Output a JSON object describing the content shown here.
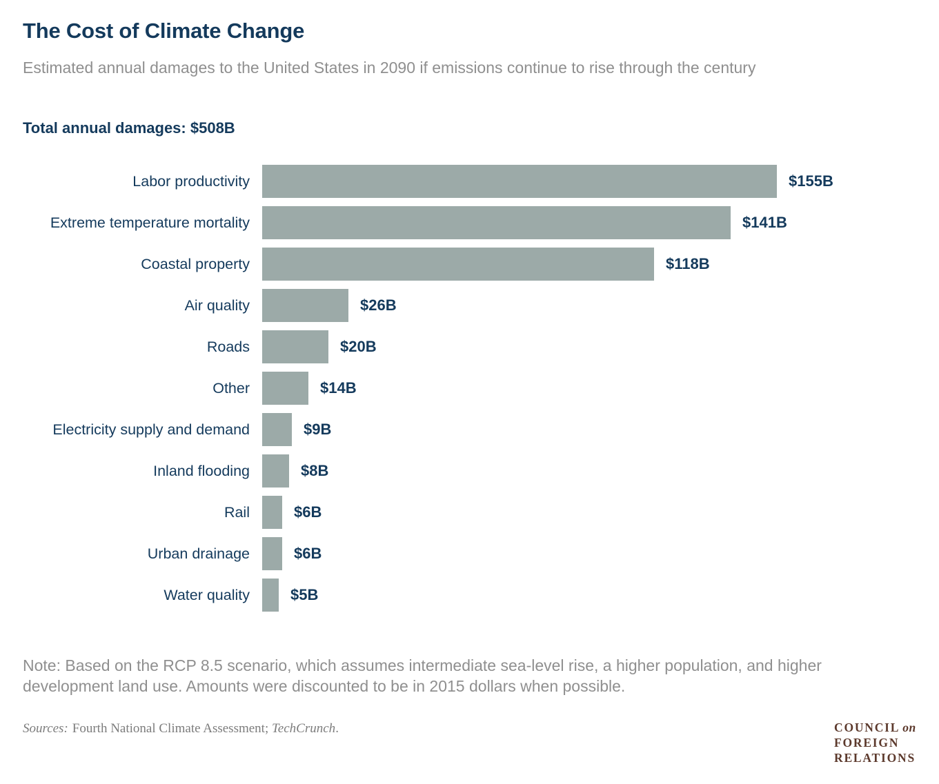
{
  "header": {
    "title": "The Cost of Climate Change",
    "subtitle": "Estimated annual damages to the United States in 2090 if emissions continue to rise through the century",
    "total_label": "Total annual damages: $508B"
  },
  "chart_data": {
    "type": "bar",
    "orientation": "horizontal",
    "title": "The Cost of Climate Change",
    "unit": "billions of US dollars (2015 dollars)",
    "total_annual_damages_billions": 508,
    "categories": [
      "Labor productivity",
      "Extreme temperature mortality",
      "Coastal property",
      "Air quality",
      "Roads",
      "Other",
      "Electricity supply and demand",
      "Inland flooding",
      "Rail",
      "Urban drainage",
      "Water quality"
    ],
    "values": [
      155,
      141,
      118,
      26,
      20,
      14,
      9,
      8,
      6,
      6,
      5
    ],
    "value_labels": [
      "$155B",
      "$141B",
      "$118B",
      "$26B",
      "$20B",
      "$14B",
      "$9B",
      "$8B",
      "$6B",
      "$6B",
      "$5B"
    ],
    "xlim": [
      0,
      160
    ],
    "grid": false,
    "legend": false,
    "bar_color": "#9caaa8",
    "text_color": "#143a5c"
  },
  "footer": {
    "note_line1": "Note: Based on the RCP 8.5 scenario, which assumes intermediate sea-level rise, a higher population, and higher",
    "note_line2": "development land use. Amounts were discounted to be in 2015 dollars when possible.",
    "sources_prefix": "Sources:",
    "sources_main": "Fourth National Climate Assessment;",
    "sources_publication": "TechCrunch",
    "sources_period": "."
  },
  "logo": {
    "line1_main": "COUNCIL",
    "line1_on": "on",
    "line2": "FOREIGN",
    "line3": "RELATIONS",
    "color": "#5c392c"
  },
  "colors": {
    "navy_text": "#143a5c",
    "bar_fill": "#9caaa8",
    "muted_gray": "#8f8f8f",
    "source_gray": "#7c7c7c",
    "logo_brown": "#5c392c",
    "background": "#ffffff"
  }
}
